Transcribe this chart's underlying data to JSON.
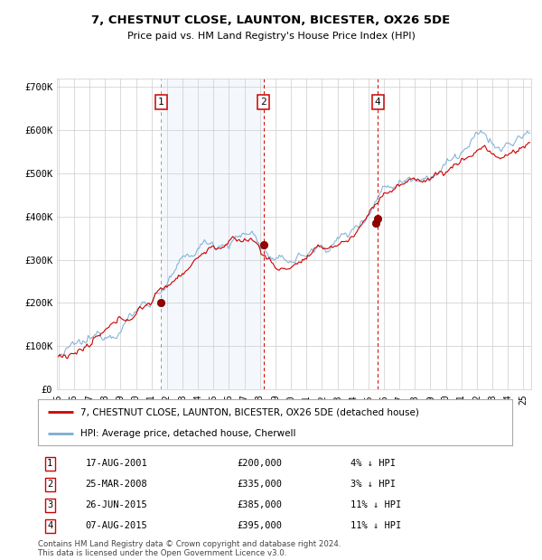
{
  "title_line1": "7, CHESTNUT CLOSE, LAUNTON, BICESTER, OX26 5DE",
  "title_line2": "Price paid vs. HM Land Registry's House Price Index (HPI)",
  "ytick_labels": [
    "£0",
    "£100K",
    "£200K",
    "£300K",
    "£400K",
    "£500K",
    "£600K",
    "£700K"
  ],
  "ytick_values": [
    0,
    100000,
    200000,
    300000,
    400000,
    500000,
    600000,
    700000
  ],
  "ylim": [
    0,
    720000
  ],
  "xlim_start": 1994.9,
  "xlim_end": 2025.5,
  "transactions": [
    {
      "num": 1,
      "date": "17-AUG-2001",
      "price": 200000,
      "year": 2001.62,
      "pct": "4%",
      "dir": "↓"
    },
    {
      "num": 2,
      "date": "25-MAR-2008",
      "price": 335000,
      "year": 2008.23,
      "pct": "3%",
      "dir": "↓"
    },
    {
      "num": 3,
      "date": "26-JUN-2015",
      "price": 385000,
      "year": 2015.48,
      "pct": "11%",
      "dir": "↓"
    },
    {
      "num": 4,
      "date": "07-AUG-2015",
      "price": 395000,
      "year": 2015.6,
      "pct": "11%",
      "dir": "↓"
    }
  ],
  "label_property": "7, CHESTNUT CLOSE, LAUNTON, BICESTER, OX26 5DE (detached house)",
  "label_hpi": "HPI: Average price, detached house, Cherwell",
  "line_color_property": "#cc0000",
  "line_color_hpi": "#7aadd4",
  "footnote": "Contains HM Land Registry data © Crown copyright and database right 2024.\nThis data is licensed under the Open Government Licence v3.0.",
  "background_color": "#ffffff",
  "grid_color": "#cccccc",
  "shaded_region": [
    2001.62,
    2008.23
  ]
}
